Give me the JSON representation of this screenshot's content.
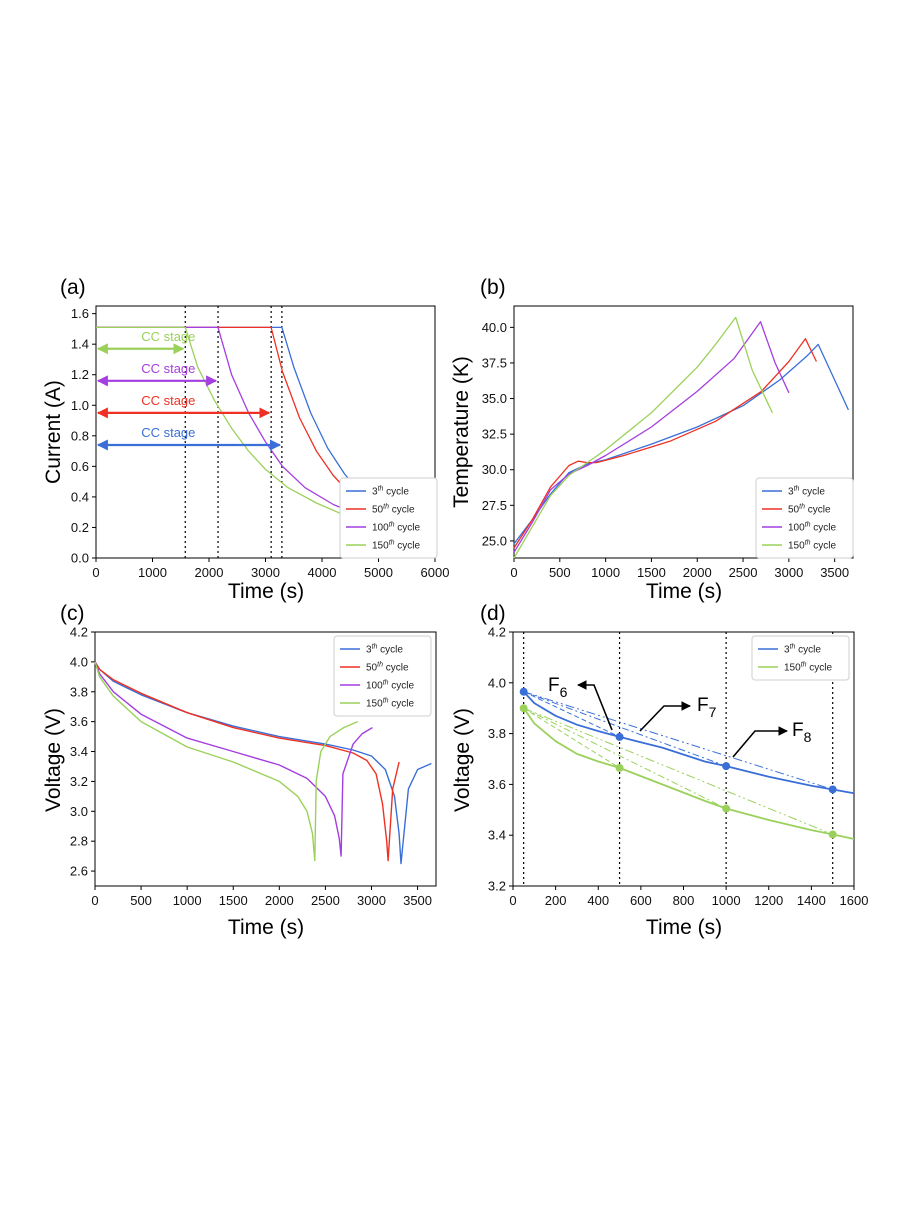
{
  "colors": {
    "c3": "#3a6fd8",
    "c50": "#ee3124",
    "c100": "#a53ee0",
    "c150": "#9bd15a"
  },
  "series_labels": {
    "c3_base": "3",
    "c50_base": "50",
    "c100_base": "100",
    "c150_base": "150",
    "sup": "th",
    "suffix": " cycle"
  },
  "chart_data": [
    {
      "panel": "(a)",
      "type": "line",
      "xlabel": "Time (s)",
      "ylabel": "Current (A)",
      "xlim": [
        0,
        6000
      ],
      "ylim": [
        0.0,
        1.65
      ],
      "xticks": [
        "0",
        "1000",
        "2000",
        "3000",
        "4000",
        "5000",
        "6000"
      ],
      "yticks": [
        "0.0",
        "0.2",
        "0.4",
        "0.6",
        "0.8",
        "1.0",
        "1.2",
        "1.4",
        "1.6"
      ],
      "legend": "lower-right",
      "annotations": {
        "cc_stage": "CC stage"
      },
      "cc_end_times": {
        "c150": 1580,
        "c100": 2160,
        "c50": 3100,
        "c3": 3290
      },
      "series": [
        {
          "key": "c3",
          "name": "3th cycle",
          "x": [
            0,
            3290,
            3500,
            3800,
            4100,
            4400,
            4700,
            5100,
            5600,
            6000
          ],
          "y": [
            1.51,
            1.51,
            1.25,
            0.95,
            0.72,
            0.55,
            0.42,
            0.31,
            0.22,
            0.17
          ]
        },
        {
          "key": "c50",
          "name": "50th cycle",
          "x": [
            0,
            3100,
            3300,
            3600,
            3900,
            4200,
            4500,
            4900,
            5400,
            6000
          ],
          "y": [
            1.51,
            1.51,
            1.22,
            0.92,
            0.7,
            0.54,
            0.42,
            0.31,
            0.21,
            0.15
          ]
        },
        {
          "key": "c100",
          "name": "100th cycle",
          "x": [
            0,
            2160,
            2400,
            2700,
            3000,
            3300,
            3700,
            4200,
            4800,
            5400,
            6000
          ],
          "y": [
            1.51,
            1.51,
            1.2,
            0.95,
            0.76,
            0.6,
            0.46,
            0.35,
            0.26,
            0.19,
            0.15
          ]
        },
        {
          "key": "c150",
          "name": "150th cycle",
          "x": [
            0,
            1580,
            1800,
            2100,
            2400,
            2700,
            3000,
            3400,
            3900,
            4400,
            5000,
            6000
          ],
          "y": [
            1.51,
            1.51,
            1.25,
            1.03,
            0.85,
            0.7,
            0.58,
            0.46,
            0.36,
            0.28,
            0.21,
            0.14
          ]
        }
      ]
    },
    {
      "panel": "(b)",
      "type": "line",
      "xlabel": "Time (s)",
      "ylabel": "Temperature (K)",
      "xlim": [
        0,
        3700
      ],
      "ylim": [
        23.8,
        41.5
      ],
      "xticks": [
        "0",
        "500",
        "1000",
        "1500",
        "2000",
        "2500",
        "3000",
        "3500"
      ],
      "yticks": [
        "25.0",
        "27.5",
        "30.0",
        "32.5",
        "35.0",
        "37.5",
        "40.0"
      ],
      "legend": "lower-right",
      "series": [
        {
          "key": "c3",
          "name": "3th cycle",
          "x": [
            0,
            200,
            400,
            600,
            800,
            1000,
            1500,
            2000,
            2500,
            2900,
            3200,
            3320,
            3450,
            3650
          ],
          "y": [
            24.8,
            26.5,
            28.3,
            29.8,
            30.4,
            30.7,
            31.8,
            33.0,
            34.5,
            36.3,
            38.0,
            38.8,
            37.0,
            34.2
          ]
        },
        {
          "key": "c50",
          "name": "50th cycle",
          "x": [
            0,
            200,
            400,
            600,
            700,
            800,
            900,
            1200,
            1700,
            2200,
            2700,
            3000,
            3180,
            3300
          ],
          "y": [
            24.5,
            26.5,
            28.8,
            30.3,
            30.6,
            30.5,
            30.5,
            31.0,
            32.0,
            33.4,
            35.5,
            37.6,
            39.2,
            37.6
          ]
        },
        {
          "key": "c100",
          "name": "100th cycle",
          "x": [
            0,
            200,
            400,
            600,
            800,
            1000,
            1500,
            2000,
            2400,
            2690,
            2850,
            3000
          ],
          "y": [
            24.2,
            26.3,
            28.6,
            29.7,
            30.3,
            31.0,
            33.0,
            35.5,
            37.8,
            40.4,
            37.5,
            35.4
          ]
        },
        {
          "key": "c150",
          "name": "150th cycle",
          "x": [
            0,
            200,
            400,
            600,
            800,
            1000,
            1500,
            2000,
            2200,
            2420,
            2600,
            2820
          ],
          "y": [
            23.8,
            26.0,
            28.2,
            29.6,
            30.5,
            31.4,
            34.0,
            37.2,
            38.8,
            40.7,
            37.0,
            34.0
          ]
        }
      ]
    },
    {
      "panel": "(c)",
      "type": "line",
      "xlabel": "Time (s)",
      "ylabel": "Voltage (V)",
      "xlim": [
        0,
        3700
      ],
      "ylim": [
        2.5,
        4.2
      ],
      "xticks": [
        "0",
        "500",
        "1000",
        "1500",
        "2000",
        "2500",
        "3000",
        "3500"
      ],
      "yticks": [
        "2.6",
        "2.8",
        "3.0",
        "3.2",
        "3.4",
        "3.6",
        "3.8",
        "4.0",
        "4.2"
      ],
      "legend": "top-right",
      "series": [
        {
          "key": "c3",
          "name": "3th cycle",
          "x": [
            0,
            50,
            200,
            500,
            1000,
            1500,
            2000,
            2500,
            2800,
            3000,
            3150,
            3250,
            3300,
            3320,
            3400,
            3500,
            3650
          ],
          "y": [
            4.0,
            3.95,
            3.87,
            3.78,
            3.66,
            3.57,
            3.5,
            3.45,
            3.41,
            3.37,
            3.28,
            3.1,
            2.85,
            2.65,
            3.15,
            3.28,
            3.32
          ]
        },
        {
          "key": "c50",
          "name": "50th cycle",
          "x": [
            0,
            50,
            200,
            500,
            1000,
            1500,
            2000,
            2500,
            2800,
            2950,
            3050,
            3120,
            3165,
            3180,
            3230,
            3300
          ],
          "y": [
            4.0,
            3.95,
            3.88,
            3.79,
            3.66,
            3.56,
            3.49,
            3.44,
            3.39,
            3.34,
            3.25,
            3.05,
            2.8,
            2.67,
            3.15,
            3.33
          ]
        },
        {
          "key": "c100",
          "name": "100th cycle",
          "x": [
            0,
            50,
            200,
            500,
            1000,
            1500,
            2000,
            2300,
            2500,
            2600,
            2650,
            2670,
            2690,
            2800,
            2900,
            3010
          ],
          "y": [
            4.0,
            3.92,
            3.8,
            3.65,
            3.49,
            3.4,
            3.31,
            3.22,
            3.1,
            2.97,
            2.82,
            2.7,
            3.25,
            3.45,
            3.52,
            3.56
          ]
        },
        {
          "key": "c150",
          "name": "150th cycle",
          "x": [
            0,
            50,
            200,
            500,
            1000,
            1500,
            2000,
            2200,
            2300,
            2360,
            2385,
            2400,
            2450,
            2550,
            2700,
            2850
          ],
          "y": [
            4.0,
            3.9,
            3.77,
            3.6,
            3.43,
            3.33,
            3.2,
            3.1,
            3.0,
            2.85,
            2.67,
            3.2,
            3.4,
            3.5,
            3.56,
            3.6
          ]
        }
      ]
    },
    {
      "panel": "(d)",
      "type": "line",
      "xlabel": "Time (s)",
      "ylabel": "Voltage (V)",
      "xlim": [
        0,
        1600
      ],
      "ylim": [
        3.2,
        4.2
      ],
      "xticks": [
        "0",
        "200",
        "400",
        "600",
        "800",
        "1000",
        "1200",
        "1400",
        "1600"
      ],
      "yticks": [
        "3.2",
        "3.4",
        "3.6",
        "3.8",
        "4.0",
        "4.2"
      ],
      "legend": "top-right",
      "vlines": [
        50,
        500,
        1000,
        1500
      ],
      "labels": {
        "f6_base": "F",
        "f6_sub": "6",
        "f7_base": "F",
        "f7_sub": "7",
        "f8_base": "F",
        "f8_sub": "8"
      },
      "series": [
        {
          "key": "c3",
          "name": "3th cycle",
          "x": [
            50,
            100,
            200,
            300,
            400,
            500,
            700,
            900,
            1000,
            1200,
            1400,
            1500,
            1600
          ],
          "y": [
            3.965,
            3.92,
            3.87,
            3.835,
            3.81,
            3.787,
            3.745,
            3.69,
            3.672,
            3.63,
            3.595,
            3.58,
            3.565
          ]
        },
        {
          "key": "c150",
          "name": "150th cycle",
          "x": [
            50,
            100,
            200,
            300,
            400,
            500,
            700,
            900,
            1000,
            1200,
            1400,
            1500,
            1600
          ],
          "y": [
            3.9,
            3.84,
            3.77,
            3.72,
            3.69,
            3.665,
            3.6,
            3.535,
            3.505,
            3.46,
            3.42,
            3.403,
            3.385
          ]
        }
      ],
      "markers": {
        "x": [
          50,
          500,
          1000,
          1500
        ],
        "c3": [
          3.965,
          3.787,
          3.672,
          3.58
        ],
        "c150": [
          3.9,
          3.665,
          3.505,
          3.403
        ]
      }
    }
  ]
}
